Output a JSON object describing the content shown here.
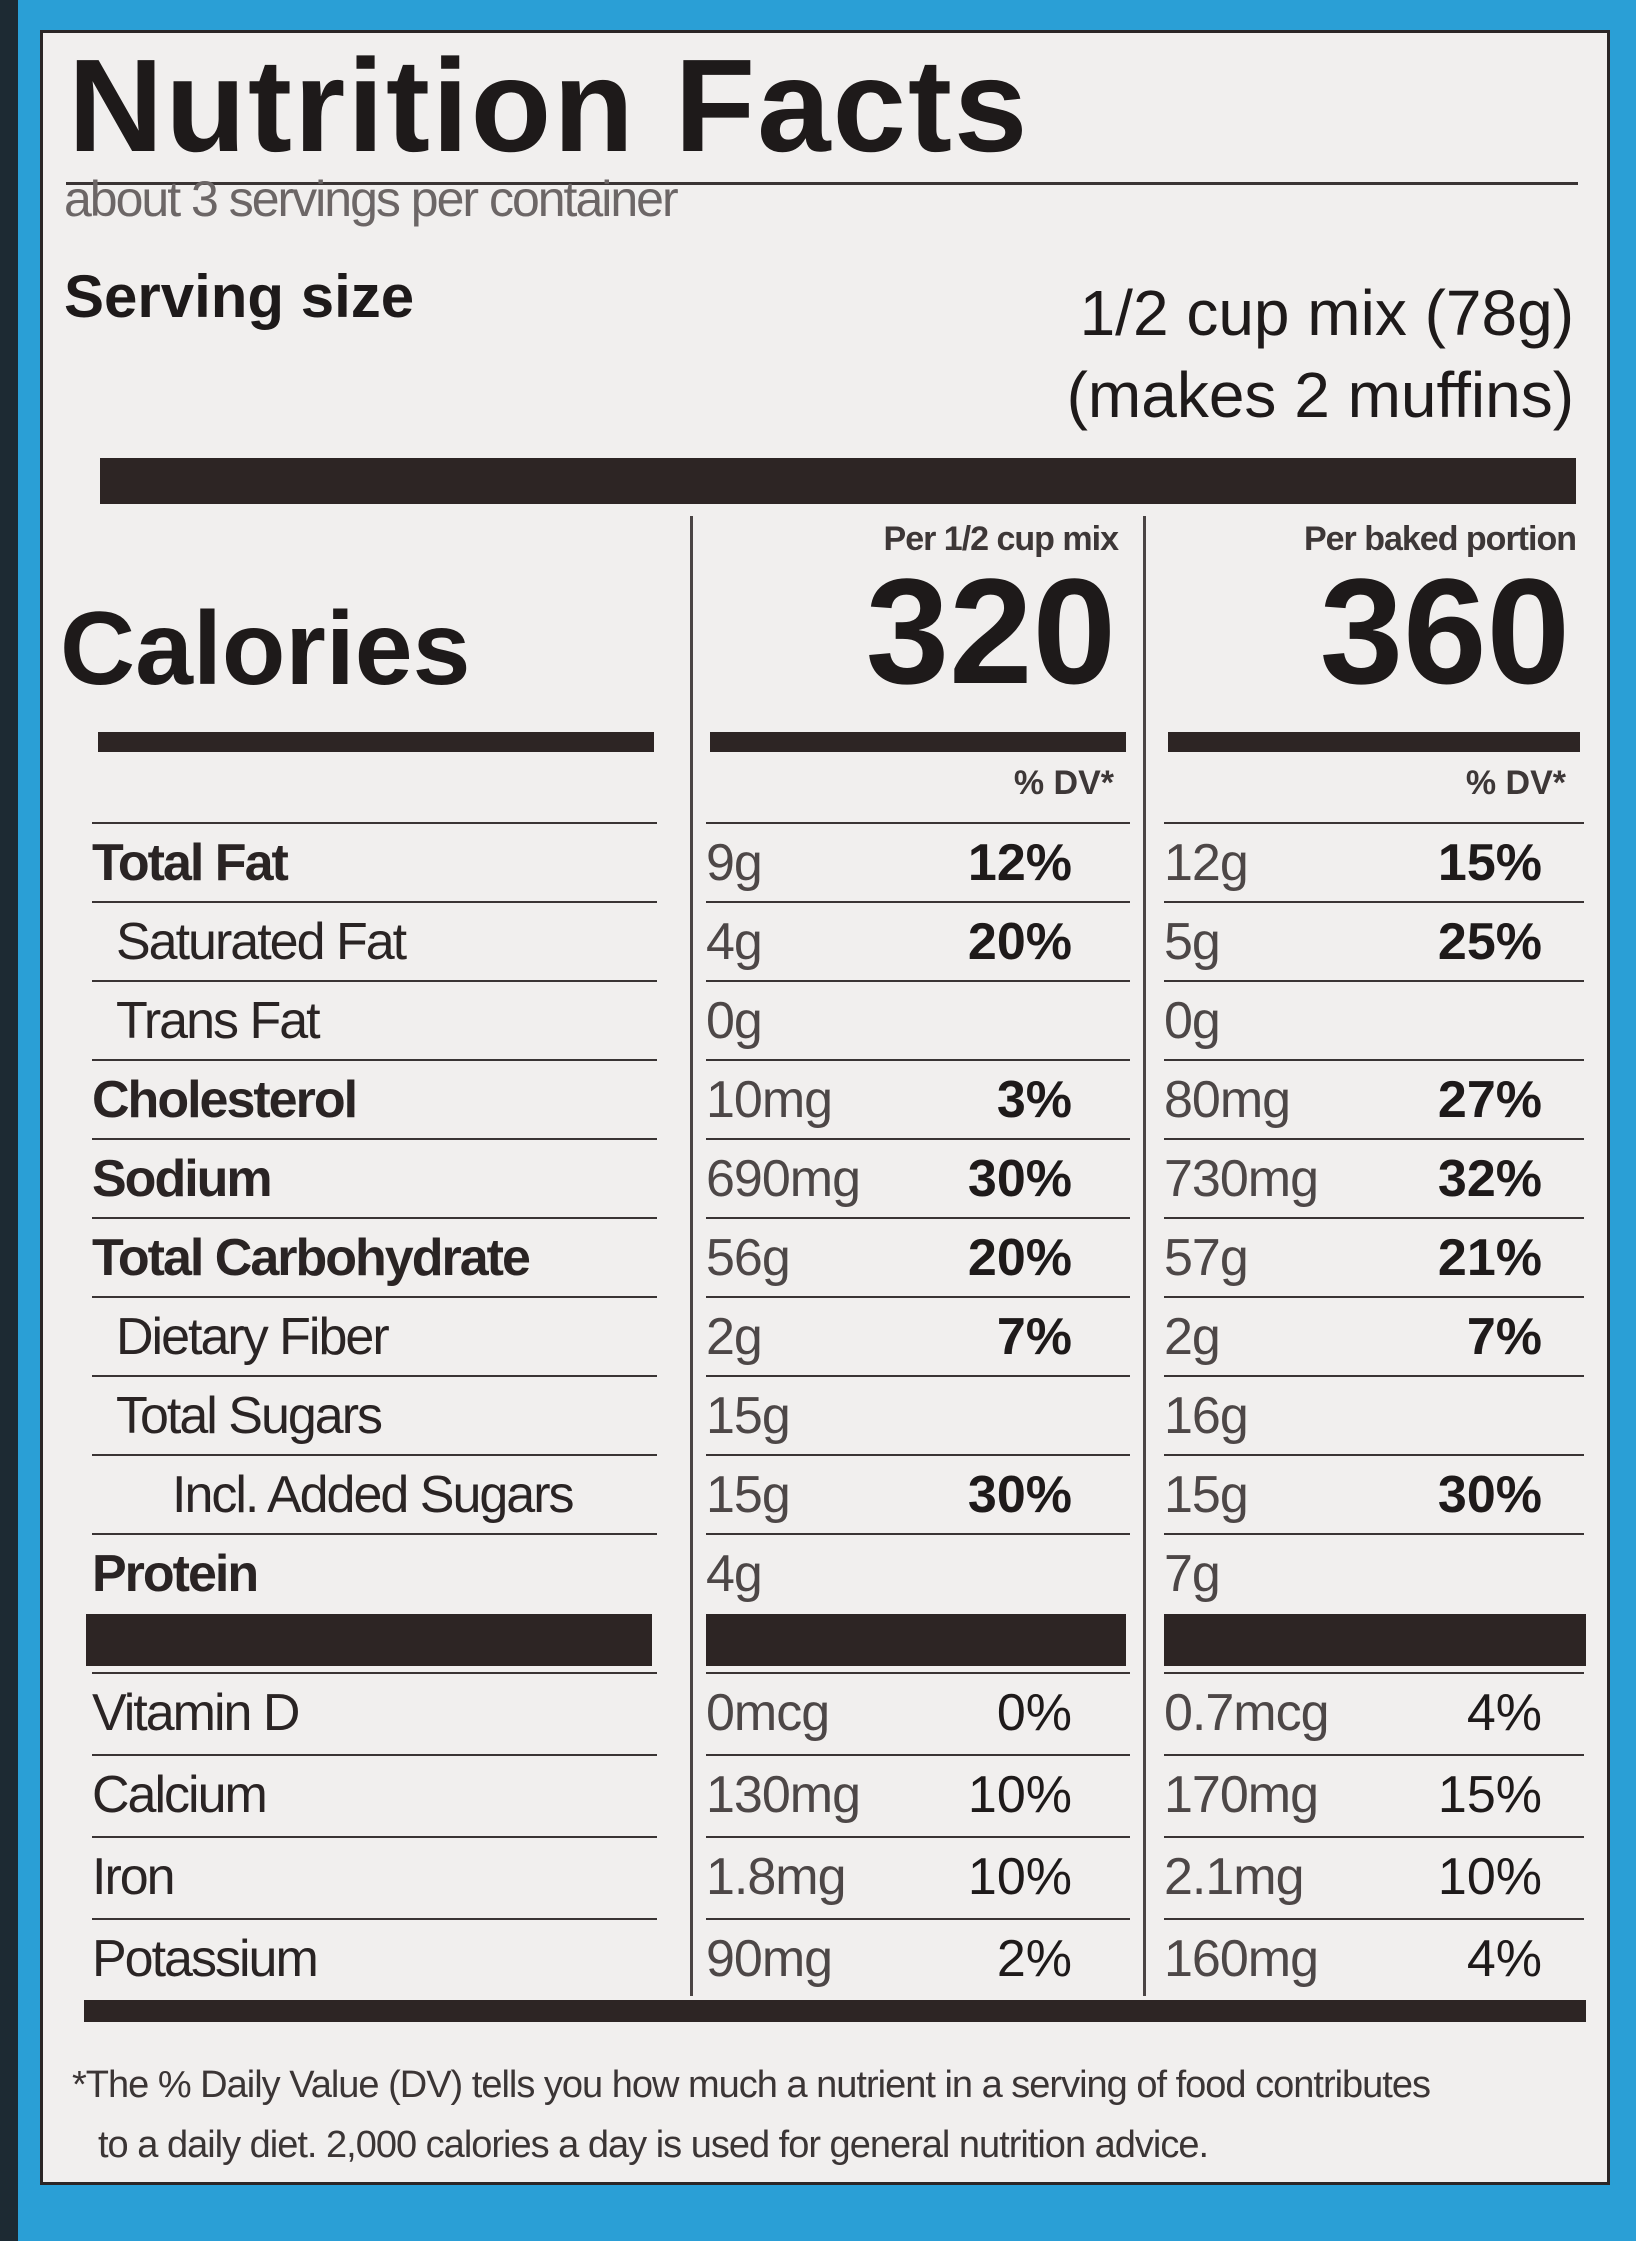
{
  "title": "Nutrition Facts",
  "servings_per_container": "about 3 servings per container",
  "serving_size_label": "Serving size",
  "serving_size_value_line1": "1/2 cup mix (78g)",
  "serving_size_value_line2": "(makes 2 muffins)",
  "columns": [
    {
      "header": "Per 1/2 cup mix",
      "calories": "320",
      "dv_header": "% DV*"
    },
    {
      "header": "Per baked portion",
      "calories": "360",
      "dv_header": "% DV*"
    }
  ],
  "calories_label": "Calories",
  "nutrients": [
    {
      "label": "Total Fat",
      "indent": 0,
      "bold": true,
      "mix": "9g",
      "mix_dv": "12%",
      "baked": "12g",
      "baked_dv": "15%"
    },
    {
      "label": "Saturated Fat",
      "indent": 1,
      "bold": false,
      "mix": "4g",
      "mix_dv": "20%",
      "baked": "5g",
      "baked_dv": "25%"
    },
    {
      "label": "Trans Fat",
      "indent": 1,
      "bold": false,
      "mix": "0g",
      "mix_dv": "",
      "baked": "0g",
      "baked_dv": ""
    },
    {
      "label": "Cholesterol",
      "indent": 0,
      "bold": true,
      "mix": "10mg",
      "mix_dv": "3%",
      "baked": "80mg",
      "baked_dv": "27%"
    },
    {
      "label": "Sodium",
      "indent": 0,
      "bold": true,
      "mix": "690mg",
      "mix_dv": "30%",
      "baked": "730mg",
      "baked_dv": "32%"
    },
    {
      "label": "Total Carbohydrate",
      "indent": 0,
      "bold": true,
      "mix": "56g",
      "mix_dv": "20%",
      "baked": "57g",
      "baked_dv": "21%"
    },
    {
      "label": "Dietary Fiber",
      "indent": 1,
      "bold": false,
      "mix": "2g",
      "mix_dv": "7%",
      "baked": "2g",
      "baked_dv": "7%"
    },
    {
      "label": "Total Sugars",
      "indent": 1,
      "bold": false,
      "mix": "15g",
      "mix_dv": "",
      "baked": "16g",
      "baked_dv": ""
    },
    {
      "label": "Incl. Added Sugars",
      "indent": 2,
      "bold": false,
      "mix": "15g",
      "mix_dv": "30%",
      "baked": "15g",
      "baked_dv": "30%"
    },
    {
      "label": "Protein",
      "indent": 0,
      "bold": true,
      "mix": "4g",
      "mix_dv": "",
      "baked": "7g",
      "baked_dv": ""
    }
  ],
  "vitamins": [
    {
      "label": "Vitamin D",
      "mix": "0mcg",
      "mix_dv": "0%",
      "baked": "0.7mcg",
      "baked_dv": "4%"
    },
    {
      "label": "Calcium",
      "mix": "130mg",
      "mix_dv": "10%",
      "baked": "170mg",
      "baked_dv": "15%"
    },
    {
      "label": "Iron",
      "mix": "1.8mg",
      "mix_dv": "10%",
      "baked": "2.1mg",
      "baked_dv": "10%"
    },
    {
      "label": "Potassium",
      "mix": "90mg",
      "mix_dv": "2%",
      "baked": "160mg",
      "baked_dv": "4%"
    }
  ],
  "footnote_line1": "*The % Daily Value (DV) tells you how much a nutrient in a serving of food contributes",
  "footnote_line2": "to a daily diet. 2,000 calories a day is used for general nutrition advice."
}
